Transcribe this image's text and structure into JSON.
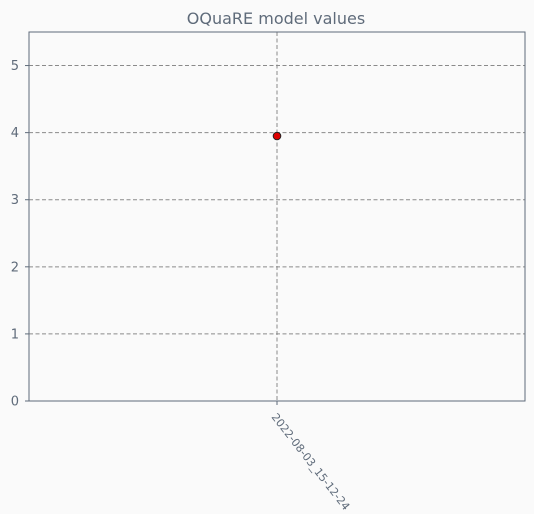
{
  "chart_data": {
    "type": "scatter",
    "title": "OQuaRE model values",
    "xlabel": "",
    "ylabel": "",
    "categories": [
      "2022-08-03_15-12-24"
    ],
    "series": [
      {
        "values": [
          3.95
        ],
        "color": "#dd0000"
      }
    ],
    "ylim": [
      0,
      5.5
    ],
    "yticks": [
      "0",
      "1",
      "2",
      "3",
      "4",
      "5"
    ],
    "grid": true,
    "legend": "none"
  }
}
